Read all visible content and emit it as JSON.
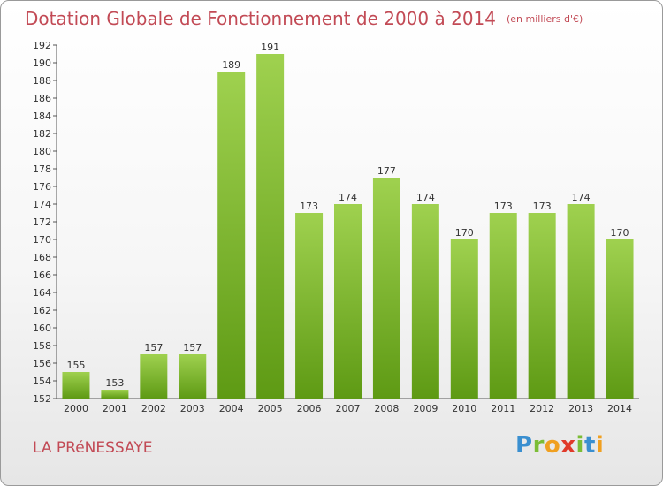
{
  "chart_data": {
    "type": "bar",
    "title": "Dotation Globale de Fonctionnement de 2000 à 2014",
    "subtitle": "(en milliers d'€)",
    "categories": [
      "2000",
      "2001",
      "2002",
      "2003",
      "2004",
      "2005",
      "2006",
      "2007",
      "2008",
      "2009",
      "2010",
      "2011",
      "2012",
      "2013",
      "2014"
    ],
    "values": [
      155,
      153,
      157,
      157,
      189,
      191,
      173,
      174,
      177,
      174,
      170,
      173,
      173,
      174,
      170
    ],
    "ylim": [
      152,
      192
    ],
    "ytick_step": 2,
    "grid": false,
    "colors": {
      "bar_top": "#9fd14f",
      "bar_bottom": "#5e9a14",
      "text": "#c24a55"
    }
  },
  "commune": "LA PRéNESSAYE",
  "logo": {
    "letters": [
      "P",
      "r",
      "o",
      "x",
      "i",
      "t",
      "i"
    ],
    "colors": [
      "#3a8fd0",
      "#7bbd36",
      "#f0a020",
      "#e03a2a",
      "#7bbd36",
      "#3a8fd0",
      "#f0a020"
    ]
  }
}
